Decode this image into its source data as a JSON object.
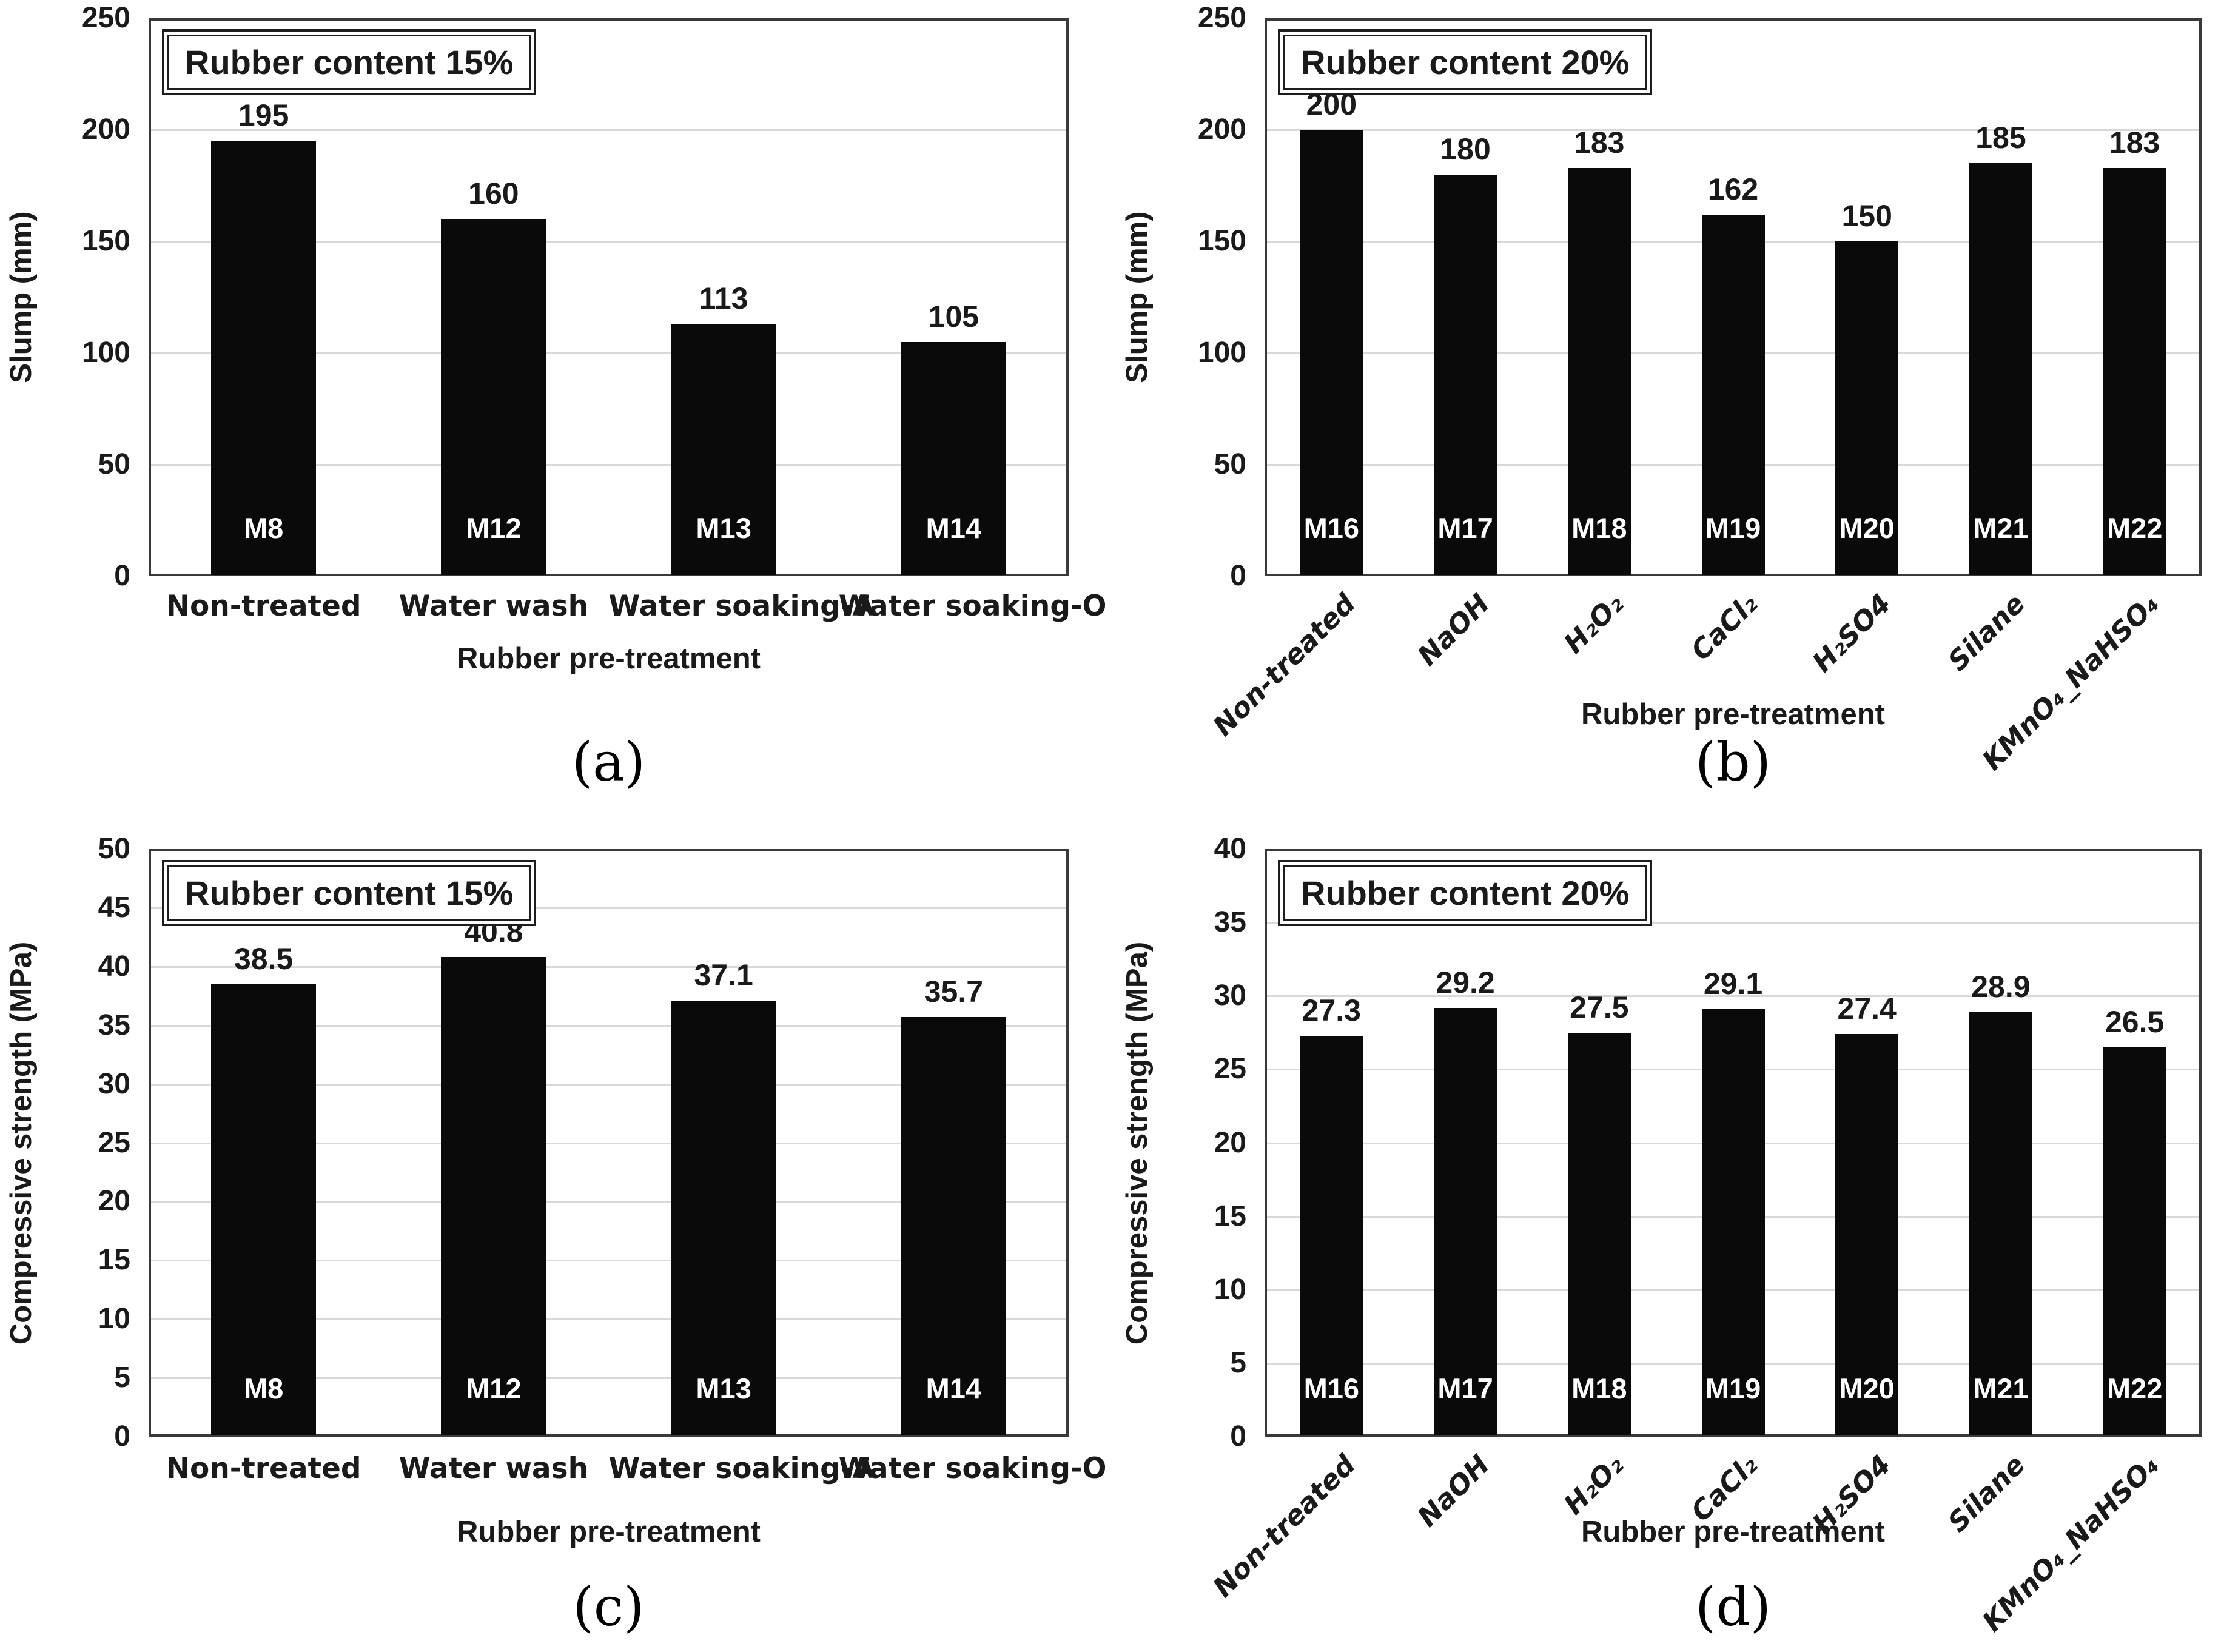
{
  "colors": {
    "bar": "#0a0a0a",
    "gridline": "#d9d9d9",
    "frame": "#3a3a3a",
    "text": "#1a1a1a",
    "bar_inner_text": "#ffffff",
    "background": "#ffffff"
  },
  "chart_data": [
    {
      "id": "a",
      "type": "bar",
      "badge": "Rubber content 15%",
      "caption": "(a)",
      "ylabel": "Slump (mm)",
      "xlabel": "Rubber pre-treatment",
      "ylim": [
        0,
        250
      ],
      "ytick_step": 50,
      "grid": true,
      "legend": "none",
      "categories": [
        "Non-treated",
        "Water wash",
        "Water soaking-A",
        "Water soaking-O"
      ],
      "bar_inner_labels": [
        "M8",
        "M12",
        "M13",
        "M14"
      ],
      "values": [
        195,
        160,
        113,
        105
      ],
      "value_labels": [
        "195",
        "160",
        "113",
        "105"
      ]
    },
    {
      "id": "b",
      "type": "bar",
      "badge": "Rubber content 20%",
      "caption": "(b)",
      "ylabel": "Slump (mm)",
      "xlabel": "Rubber pre-treatment",
      "ylim": [
        0,
        250
      ],
      "ytick_step": 50,
      "grid": true,
      "legend": "none",
      "categories": [
        "Non-treated",
        "NaOH",
        "H₂O₂",
        "CaCl₂",
        "H₂SO4",
        "Silane",
        "KMnO₄_NaHSO₄"
      ],
      "bar_inner_labels": [
        "M16",
        "M17",
        "M18",
        "M19",
        "M20",
        "M21",
        "M22"
      ],
      "values": [
        200,
        180,
        183,
        162,
        150,
        185,
        183
      ],
      "value_labels": [
        "200",
        "180",
        "183",
        "162",
        "150",
        "185",
        "183"
      ]
    },
    {
      "id": "c",
      "type": "bar",
      "badge": "Rubber content 15%",
      "caption": "(c)",
      "ylabel": "Compressive strength (MPa)",
      "xlabel": "Rubber pre-treatment",
      "ylim": [
        0,
        50
      ],
      "ytick_step": 5,
      "grid": true,
      "legend": "none",
      "categories": [
        "Non-treated",
        "Water wash",
        "Water soaking-A",
        "Water soaking-O"
      ],
      "bar_inner_labels": [
        "M8",
        "M12",
        "M13",
        "M14"
      ],
      "values": [
        38.5,
        40.8,
        37.1,
        35.7
      ],
      "value_labels": [
        "38.5",
        "40.8",
        "37.1",
        "35.7"
      ]
    },
    {
      "id": "d",
      "type": "bar",
      "badge": "Rubber content 20%",
      "caption": "(d)",
      "ylabel": "Compressive strength (MPa)",
      "xlabel": "Rubber pre-treatment",
      "ylim": [
        0,
        40
      ],
      "ytick_step": 5,
      "grid": true,
      "legend": "none",
      "categories": [
        "Non-treated",
        "NaOH",
        "H₂O₂",
        "CaCl₂",
        "H₂SO4",
        "Silane",
        "KMnO₄_NaHSO₄"
      ],
      "bar_inner_labels": [
        "M16",
        "M17",
        "M18",
        "M19",
        "M20",
        "M21",
        "M22"
      ],
      "values": [
        27.3,
        29.2,
        27.5,
        29.1,
        27.4,
        28.9,
        26.5
      ],
      "value_labels": [
        "27.3",
        "29.2",
        "27.5",
        "29.1",
        "27.4",
        "28.9",
        "26.5"
      ]
    }
  ]
}
